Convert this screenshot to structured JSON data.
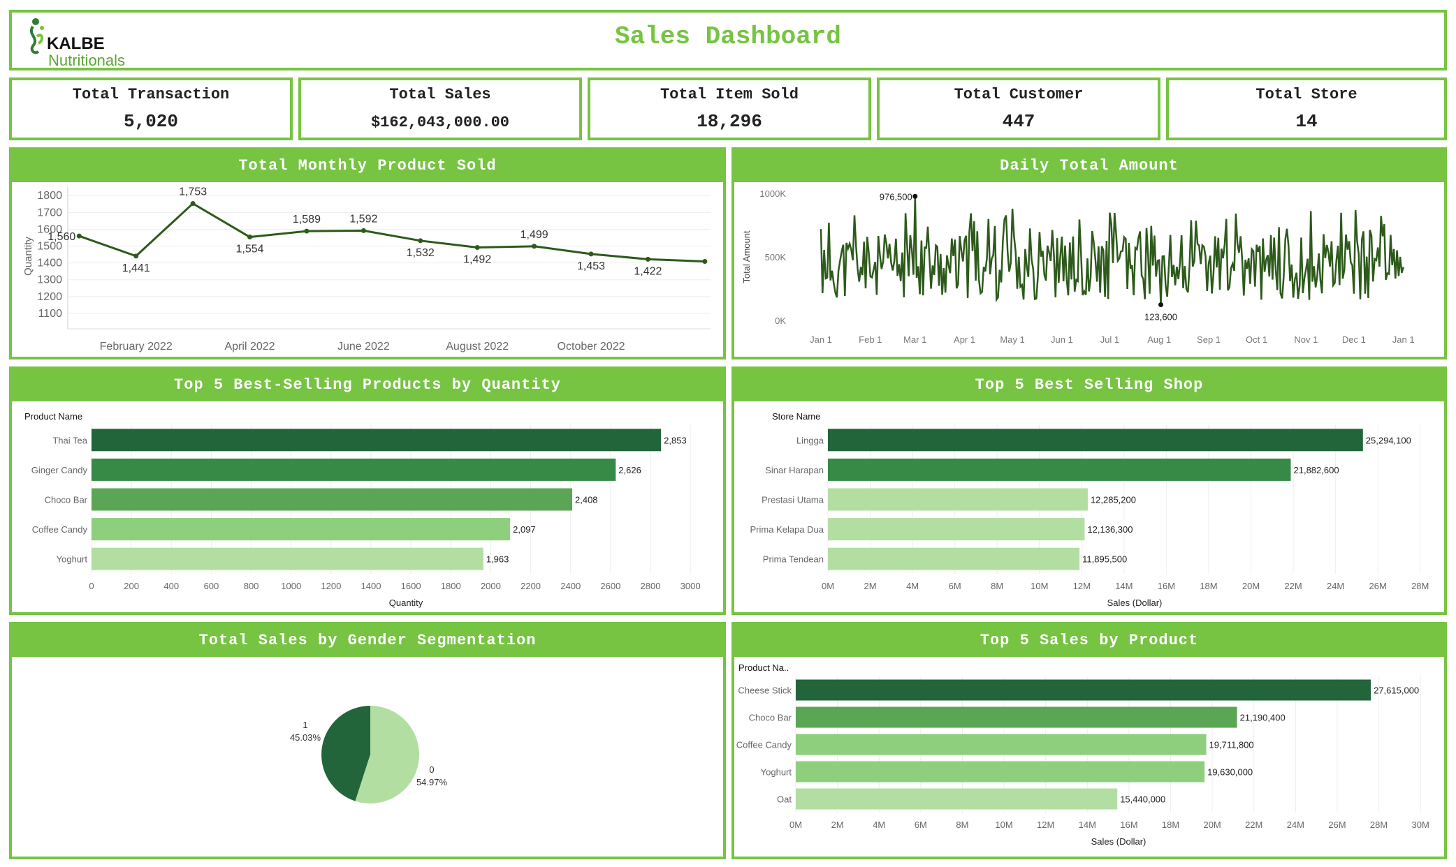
{
  "header": {
    "logo_brand": "KALBE",
    "logo_sub": "Nutritionals",
    "title": "Sales Dashboard"
  },
  "kpis": [
    {
      "label": "Total Transaction",
      "value": "5,020"
    },
    {
      "label": "Total Sales",
      "value": "$162,043,000.00"
    },
    {
      "label": "Total Item Sold",
      "value": "18,296"
    },
    {
      "label": "Total Customer",
      "value": "447"
    },
    {
      "label": "Total Store",
      "value": "14"
    }
  ],
  "panels": {
    "monthly": "Total Monthly Product Sold",
    "daily": "Daily Total Amount",
    "top_products_qty": "Top 5 Best-Selling Products by Quantity",
    "top_shop": "Top 5 Best Selling Shop",
    "gender": "Total Sales by Gender Segmentation",
    "top_sales_product": "Top 5 Sales by Product"
  },
  "colors": {
    "accent": "#76c442",
    "line": "#2d5a1b",
    "bar_dark": "#22653a",
    "bar_mid": "#368a46",
    "bar_med": "#5ba655",
    "bar_light": "#8ecf7e",
    "bar_pale": "#b3dea2"
  },
  "chart_data": [
    {
      "id": "monthly",
      "type": "line",
      "title": "Total Monthly Product Sold",
      "ylabel": "Quantity",
      "xlabel": "",
      "ylim": [
        1050,
        1830
      ],
      "yticks": [
        1100,
        1200,
        1300,
        1400,
        1500,
        1600,
        1700,
        1800
      ],
      "x": [
        1,
        2,
        3,
        4,
        5,
        6,
        7,
        8,
        9,
        10,
        11,
        12
      ],
      "values": [
        1560,
        1441,
        1753,
        1554,
        1589,
        1592,
        1532,
        1492,
        1499,
        1453,
        1422,
        1409
      ],
      "point_labels": [
        "1,560",
        "1,441",
        "1,753",
        "1,554",
        "1,589",
        "1,592",
        "1,532",
        "1,492",
        "1,499",
        "1,453",
        "1,422",
        ""
      ],
      "x_ticks": [
        {
          "month": 2,
          "label": "February 2022"
        },
        {
          "month": 4,
          "label": "April 2022"
        },
        {
          "month": 6,
          "label": "June 2022"
        },
        {
          "month": 8,
          "label": "August 2022"
        },
        {
          "month": 10,
          "label": "October 2022"
        }
      ]
    },
    {
      "id": "daily",
      "type": "line",
      "title": "Daily Total Amount",
      "ylabel": "Total Amount",
      "ylim": [
        0,
        1000000
      ],
      "yticks": [
        {
          "v": 0,
          "label": "0K"
        },
        {
          "v": 500000,
          "label": "500K"
        },
        {
          "v": 1000000,
          "label": "1000K"
        }
      ],
      "x_ticks": [
        "Jan 1",
        "Feb 1",
        "Mar 1",
        "Apr 1",
        "May 1",
        "Jun 1",
        "Jul 1",
        "Aug 1",
        "Sep 1",
        "Oct 1",
        "Nov 1",
        "Dec 1",
        "Jan 1"
      ],
      "max": {
        "day": 59,
        "value": 976500,
        "label": "976,500"
      },
      "min": {
        "day": 213,
        "value": 123600,
        "label": "123,600"
      },
      "note": "365 daily values approximated; series fluctuates roughly between 150K and 900K"
    },
    {
      "id": "top_products_qty",
      "type": "bar",
      "orientation": "horizontal",
      "title": "Top 5 Best-Selling Products by Quantity",
      "category_header": "Product Name",
      "xlabel": "Quantity",
      "xlim": [
        0,
        3150
      ],
      "xticks": [
        0,
        200,
        400,
        600,
        800,
        1000,
        1200,
        1400,
        1600,
        1800,
        2000,
        2200,
        2400,
        2600,
        2800,
        3000
      ],
      "tick_labels": [
        "0",
        "200",
        "400",
        "600",
        "800",
        "1000",
        "1200",
        "1400",
        "1600",
        "1800",
        "2000",
        "2200",
        "2400",
        "2600",
        "2800",
        "3000"
      ],
      "categories": [
        "Thai Tea",
        "Ginger Candy",
        "Choco Bar",
        "Coffee Candy",
        "Yoghurt"
      ],
      "values": [
        2853,
        2626,
        2408,
        2097,
        1963
      ],
      "labels": [
        "2,853",
        "2,626",
        "2,408",
        "2,097",
        "1,963"
      ],
      "bar_colors": [
        "#22653a",
        "#368a46",
        "#5ba655",
        "#8ecf7e",
        "#b3dea2"
      ]
    },
    {
      "id": "top_shop",
      "type": "bar",
      "orientation": "horizontal",
      "title": "Top 5 Best Selling Shop",
      "category_header": "Store Name",
      "xlabel": "Sales (Dollar)",
      "xlim": [
        0,
        29000000
      ],
      "xticks": [
        0,
        2000000,
        4000000,
        6000000,
        8000000,
        10000000,
        12000000,
        14000000,
        16000000,
        18000000,
        20000000,
        22000000,
        24000000,
        26000000,
        28000000
      ],
      "tick_labels": [
        "0M",
        "2M",
        "4M",
        "6M",
        "8M",
        "10M",
        "12M",
        "14M",
        "16M",
        "18M",
        "20M",
        "22M",
        "24M",
        "26M",
        "28M"
      ],
      "categories": [
        "Lingga",
        "Sinar Harapan",
        "Prestasi Utama",
        "Prima Kelapa Dua",
        "Prima Tendean"
      ],
      "values": [
        25294100,
        21882600,
        12285200,
        12136300,
        11895500
      ],
      "labels": [
        "25,294,100",
        "21,882,600",
        "12,285,200",
        "12,136,300",
        "11,895,500"
      ],
      "bar_colors": [
        "#22653a",
        "#368a46",
        "#b3dea2",
        "#b3dea2",
        "#b3dea2"
      ]
    },
    {
      "id": "gender",
      "type": "pie",
      "title": "Total Sales by Gender Segmentation",
      "slices": [
        {
          "name": "1",
          "percent": 45.03,
          "label": "45.03%",
          "color": "#22653a"
        },
        {
          "name": "0",
          "percent": 54.97,
          "label": "54.97%",
          "color": "#b3dea2"
        }
      ]
    },
    {
      "id": "top_sales_product",
      "type": "bar",
      "orientation": "horizontal",
      "title": "Top 5 Sales by Product",
      "category_header": "Product Na..",
      "xlabel": "Sales (Dollar)",
      "xlim": [
        0,
        31000000
      ],
      "xticks": [
        0,
        2000000,
        4000000,
        6000000,
        8000000,
        10000000,
        12000000,
        14000000,
        16000000,
        18000000,
        20000000,
        22000000,
        24000000,
        26000000,
        28000000,
        30000000
      ],
      "tick_labels": [
        "0M",
        "2M",
        "4M",
        "6M",
        "8M",
        "10M",
        "12M",
        "14M",
        "16M",
        "18M",
        "20M",
        "22M",
        "24M",
        "26M",
        "28M",
        "30M"
      ],
      "categories": [
        "Cheese Stick",
        "Choco Bar",
        "Coffee Candy",
        "Yoghurt",
        "Oat"
      ],
      "values": [
        27615000,
        21190400,
        19711800,
        19630000,
        15440000
      ],
      "labels": [
        "27,615,000",
        "21,190,400",
        "19,711,800",
        "19,630,000",
        "15,440,000"
      ],
      "bar_colors": [
        "#22653a",
        "#5ba655",
        "#8ecf7e",
        "#8ecf7e",
        "#b3dea2"
      ]
    }
  ]
}
